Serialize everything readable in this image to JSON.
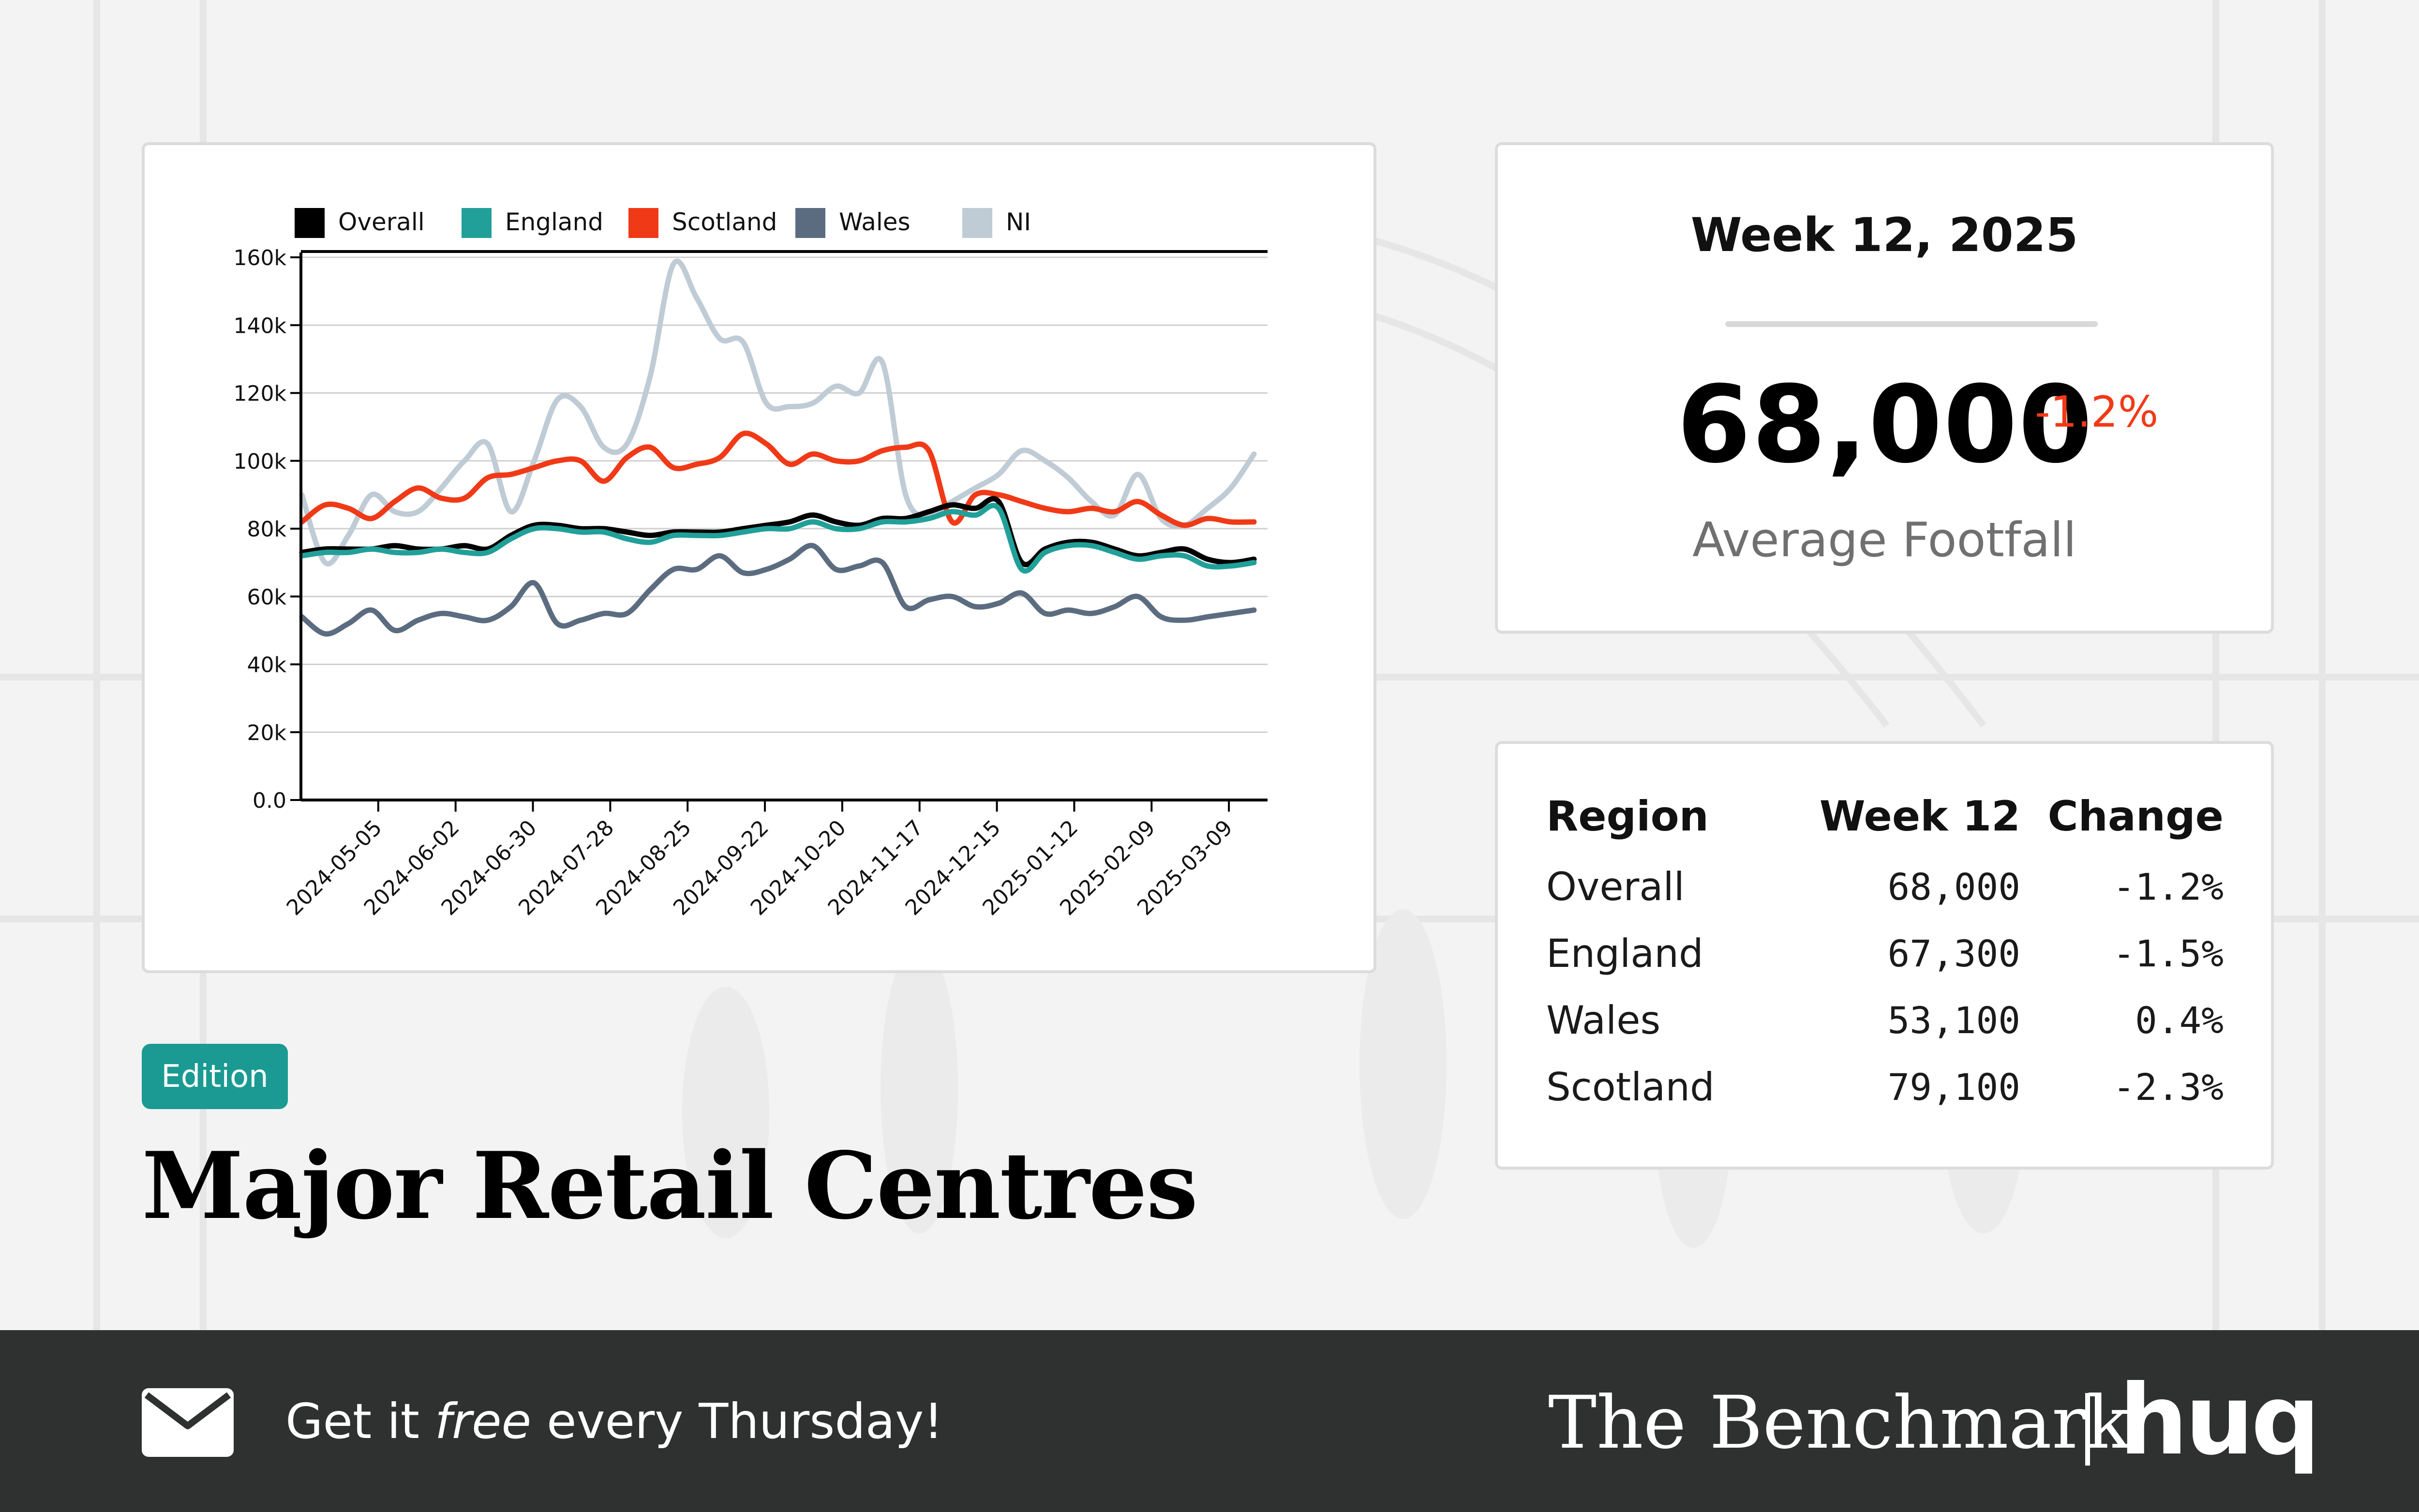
{
  "chart_data": {
    "type": "line",
    "legend_position": "top-left",
    "grid": true,
    "ylim": [
      0,
      160000
    ],
    "y_ticks": [
      "0.0",
      "20k",
      "40k",
      "60k",
      "80k",
      "100k",
      "120k",
      "140k",
      "160k"
    ],
    "x_ticks": [
      "2024-05-05",
      "2024-06-02",
      "2024-06-30",
      "2024-07-28",
      "2024-08-25",
      "2024-09-22",
      "2024-10-20",
      "2024-11-17",
      "2024-12-15",
      "2025-01-12",
      "2025-02-09",
      "2025-03-09"
    ],
    "x_start": "2024-04-07",
    "x_end": "2025-03-23",
    "series": [
      {
        "name": "Overall",
        "color": "#000000",
        "values": [
          73000,
          74000,
          74000,
          74000,
          75000,
          74000,
          74000,
          75000,
          74000,
          78000,
          81000,
          81000,
          80000,
          80000,
          79000,
          78000,
          79000,
          79000,
          79000,
          80000,
          81000,
          82000,
          84000,
          82000,
          81000,
          83000,
          83000,
          85000,
          87000,
          86000,
          88000,
          70000,
          74000,
          76000,
          76000,
          74000,
          72000,
          73000,
          74000,
          71000,
          70000,
          71000
        ]
      },
      {
        "name": "England",
        "color": "#21a099",
        "values": [
          72000,
          73000,
          73000,
          74000,
          73000,
          73000,
          74000,
          73000,
          73000,
          77000,
          80000,
          80000,
          79000,
          79000,
          77000,
          76000,
          78000,
          78000,
          78000,
          79000,
          80000,
          80000,
          82000,
          80000,
          80000,
          82000,
          82000,
          83000,
          85000,
          84000,
          86000,
          68000,
          73000,
          75000,
          75000,
          73000,
          71000,
          72000,
          72000,
          69000,
          69000,
          70000
        ]
      },
      {
        "name": "Scotland",
        "color": "#f03a17",
        "values": [
          82000,
          87000,
          86000,
          83000,
          88000,
          92000,
          89000,
          89000,
          95000,
          96000,
          98000,
          100000,
          100000,
          94000,
          101000,
          104000,
          98000,
          99000,
          101000,
          108000,
          105000,
          99000,
          102000,
          100000,
          100000,
          103000,
          104000,
          103000,
          82000,
          90000,
          90000,
          88000,
          86000,
          85000,
          86000,
          85000,
          88000,
          84000,
          81000,
          83000,
          82000,
          82000
        ]
      },
      {
        "name": "Wales",
        "color": "#5c6c80",
        "values": [
          54000,
          49000,
          52000,
          56000,
          50000,
          53000,
          55000,
          54000,
          53000,
          57000,
          64000,
          52000,
          53000,
          55000,
          55000,
          62000,
          68000,
          68000,
          72000,
          67000,
          68000,
          71000,
          75000,
          68000,
          69000,
          70000,
          57000,
          59000,
          60000,
          57000,
          58000,
          61000,
          55000,
          56000,
          55000,
          57000,
          60000,
          54000,
          53000,
          54000,
          55000,
          56000
        ]
      },
      {
        "name": "NI",
        "color": "#bfcbd5",
        "values": [
          90000,
          70000,
          78000,
          90000,
          85000,
          85000,
          92000,
          100000,
          105000,
          85000,
          100000,
          118000,
          116000,
          104000,
          105000,
          125000,
          158000,
          148000,
          136000,
          135000,
          117000,
          116000,
          117000,
          122000,
          120000,
          129000,
          90000,
          84000,
          88000,
          92000,
          96000,
          103000,
          100000,
          95000,
          88000,
          84000,
          96000,
          83000,
          81000,
          86000,
          92000,
          102000
        ]
      }
    ]
  },
  "stat": {
    "week_label": "Week 12, 2025",
    "value": "68,000",
    "change": "-1.2%",
    "label": "Average Footfall"
  },
  "table": {
    "headers": [
      "Region",
      "Week 12",
      "Change"
    ],
    "rows": [
      {
        "region": "Overall",
        "week": "68,000",
        "change": "-1.2%"
      },
      {
        "region": "England",
        "week": "67,300",
        "change": "-1.5%"
      },
      {
        "region": "Wales",
        "week": "53,100",
        "change": "0.4%"
      },
      {
        "region": "Scotland",
        "week": "79,100",
        "change": "-2.3%"
      }
    ]
  },
  "badge": {
    "label": "Edition"
  },
  "title": "Major Retail Centres",
  "footer": {
    "cta_prefix": "Get it ",
    "cta_em": "free",
    "cta_suffix": " every Thursday!",
    "brand_name": "The Benchmark",
    "brand_logo": "huq"
  },
  "colors": {
    "accent": "#1a9a92",
    "negative": "#f03a17",
    "footer": "#2f3030"
  }
}
